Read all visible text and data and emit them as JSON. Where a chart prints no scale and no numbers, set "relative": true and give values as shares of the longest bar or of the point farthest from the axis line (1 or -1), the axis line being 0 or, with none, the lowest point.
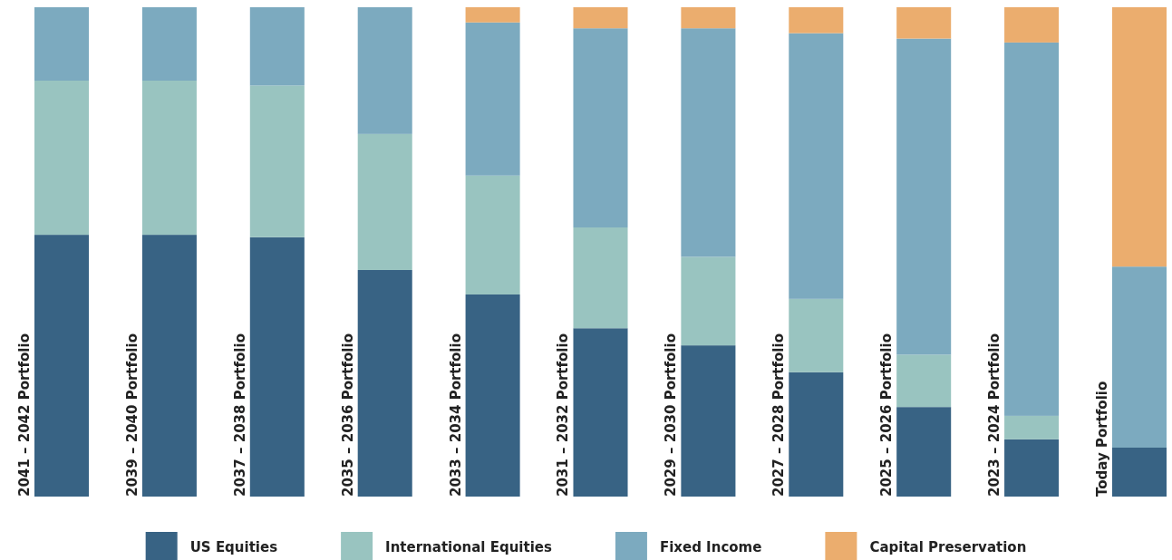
{
  "chart_data": {
    "type": "bar",
    "stacked": true,
    "relative": true,
    "legend": "bottom",
    "categories": [
      "2041 – 2042 Portfolio",
      "2039 – 2040 Portfolio",
      "2037 – 2038 Portfolio",
      "2035 – 2036 Portfolio",
      "2033 – 2034 Portfolio",
      "2031 – 2032 Portfolio",
      "2029 – 2030 Portfolio",
      "2027 – 2028 Portfolio",
      "2025 – 2026 Portfolio",
      "2023 – 2024 Portfolio",
      "Today Portfolio"
    ],
    "series": [
      {
        "name": "US Equities",
        "color": "#386384",
        "values": [
          0.535,
          0.535,
          0.53,
          0.463,
          0.413,
          0.344,
          0.309,
          0.254,
          0.183,
          0.117,
          0.1
        ]
      },
      {
        "name": "International Equities",
        "color": "#99c4c0",
        "values": [
          0.315,
          0.315,
          0.31,
          0.278,
          0.243,
          0.206,
          0.181,
          0.15,
          0.107,
          0.048,
          0
        ]
      },
      {
        "name": "Fixed Income",
        "color": "#7caabf",
        "values": [
          0.15,
          0.15,
          0.16,
          0.259,
          0.313,
          0.407,
          0.467,
          0.543,
          0.646,
          0.763,
          0.37
        ]
      },
      {
        "name": "Capital Preservation",
        "color": "#ebad6e",
        "values": [
          0,
          0,
          0,
          0,
          0.031,
          0.043,
          0.043,
          0.053,
          0.064,
          0.072,
          0.53
        ]
      }
    ]
  }
}
